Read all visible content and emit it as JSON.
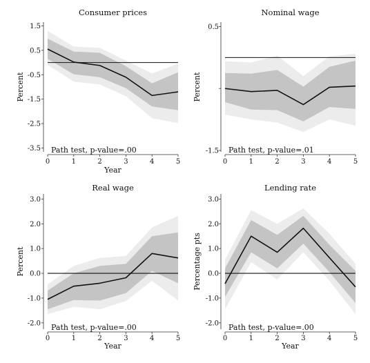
{
  "chart_data": [
    {
      "type": "line",
      "title": "Consumer prices",
      "xlabel": "Year",
      "ylabel": "Percent",
      "x": [
        0,
        1,
        2,
        3,
        4,
        5
      ],
      "xticks": [
        "0",
        "1",
        "2",
        "3",
        "4",
        "5"
      ],
      "ylim": [
        -3.6,
        1.6
      ],
      "yticks": [
        1.5,
        0.5,
        -0.5,
        -1.5,
        -2.5,
        -3.5
      ],
      "ytick_labels": [
        "1.5",
        "0.5",
        "-0.5",
        "-1.5",
        "-2.5",
        "-3.5"
      ],
      "zero_line": 0,
      "grid": false,
      "series": [
        {
          "values": [
            0.55,
            0.02,
            -0.12,
            -0.6,
            -1.35,
            -1.2
          ],
          "ci90_lower": [
            0.15,
            -0.48,
            -0.6,
            -1.05,
            -1.8,
            -1.95
          ],
          "ci90_upper": [
            0.98,
            0.45,
            0.4,
            -0.15,
            -0.85,
            -0.4
          ],
          "ci95_lower": [
            -0.1,
            -0.78,
            -0.9,
            -1.38,
            -2.28,
            -2.48
          ],
          "ci95_upper": [
            1.3,
            0.65,
            0.6,
            0.08,
            -0.45,
            -0.05
          ]
        }
      ],
      "annotation": "Path test, p-value=.00"
    },
    {
      "type": "line",
      "title": "Nominal wage",
      "xlabel": "",
      "ylabel": "Percent",
      "x": [
        0,
        1,
        2,
        3,
        4,
        5
      ],
      "xticks": [
        "0",
        "1",
        "2",
        "3",
        "4",
        "5"
      ],
      "ylim": [
        -1.5,
        0.55
      ],
      "yticks": [
        0.5,
        -0.5,
        -1.5
      ],
      "ytick_labels": [
        "0.5",
        "",
        "-1.5"
      ],
      "zero_line": 0,
      "grid": false,
      "series": [
        {
          "values": [
            -0.5,
            -0.55,
            -0.53,
            -0.76,
            -0.48,
            -0.46
          ],
          "ci90_lower": [
            -0.72,
            -0.84,
            -0.85,
            -1.03,
            -0.8,
            -0.83
          ],
          "ci90_upper": [
            -0.25,
            -0.26,
            -0.2,
            -0.47,
            -0.15,
            -0.05
          ],
          "ci95_lower": [
            -0.92,
            -1.0,
            -1.05,
            -1.2,
            -1.0,
            -1.1
          ],
          "ci95_upper": [
            -0.06,
            -0.08,
            0.03,
            -0.3,
            0.02,
            0.06
          ]
        }
      ],
      "annotation": "Path test, p-value=.01"
    },
    {
      "type": "line",
      "title": "Real wage",
      "xlabel": "Year",
      "ylabel": "Percent",
      "x": [
        0,
        1,
        2,
        3,
        4,
        5
      ],
      "xticks": [
        "0",
        "1",
        "2",
        "3",
        "4",
        "5"
      ],
      "ylim": [
        -2.2,
        3.15
      ],
      "yticks": [
        3.0,
        2.0,
        1.0,
        0.0,
        -1.0,
        -2.0
      ],
      "ytick_labels": [
        "3.0",
        "2.0",
        "1.0",
        "0.0",
        "-1.0",
        "-2.0"
      ],
      "zero_line": 0,
      "grid": false,
      "series": [
        {
          "values": [
            -1.05,
            -0.52,
            -0.4,
            -0.18,
            0.8,
            0.62
          ],
          "ci90_lower": [
            -1.45,
            -1.08,
            -1.1,
            -0.8,
            0.1,
            -0.4
          ],
          "ci90_upper": [
            -0.7,
            0.0,
            0.3,
            0.38,
            1.5,
            1.65
          ],
          "ci95_lower": [
            -1.65,
            -1.35,
            -1.45,
            -1.12,
            -0.3,
            -1.1
          ],
          "ci95_upper": [
            -0.45,
            0.3,
            0.62,
            0.7,
            1.85,
            2.32
          ]
        }
      ],
      "annotation": "Path test, p-value=.00"
    },
    {
      "type": "line",
      "title": "Lending rate",
      "xlabel": "Year",
      "ylabel": "Percentage pts",
      "x": [
        0,
        1,
        2,
        3,
        4,
        5
      ],
      "xticks": [
        "0",
        "1",
        "2",
        "3",
        "4",
        "5"
      ],
      "ylim": [
        -2.2,
        3.15
      ],
      "yticks": [
        3.0,
        2.0,
        1.0,
        0.0,
        -1.0,
        -2.0
      ],
      "ytick_labels": [
        "3.0",
        "2.0",
        "1.0",
        "0.0",
        "-1.0",
        "-2.0"
      ],
      "zero_line": 0,
      "grid": false,
      "series": [
        {
          "values": [
            -0.42,
            1.5,
            0.85,
            1.82,
            0.63,
            -0.55
          ],
          "ci90_lower": [
            -0.95,
            0.85,
            0.2,
            1.2,
            0.05,
            -1.2
          ],
          "ci90_upper": [
            0.2,
            2.15,
            1.55,
            2.32,
            1.15,
            0.1
          ],
          "ci95_lower": [
            -1.45,
            0.45,
            -0.25,
            0.85,
            -0.3,
            -1.65
          ],
          "ci95_upper": [
            0.55,
            2.55,
            2.0,
            2.62,
            1.6,
            0.38
          ]
        }
      ],
      "annotation": "Path test, p-value=.00"
    }
  ]
}
